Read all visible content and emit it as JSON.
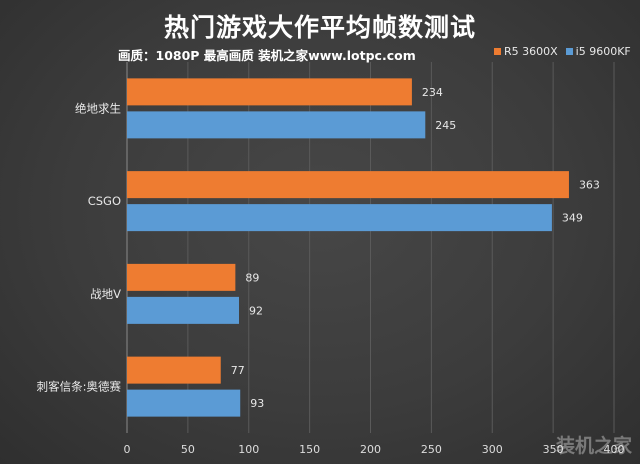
{
  "title": "热门游戏大作平均帧数测试",
  "subtitle": "画质：1080P 最高画质 装机之家www.lotpc.com",
  "watermark": "装机之家",
  "chart_data": {
    "type": "bar",
    "orientation": "horizontal",
    "categories": [
      "绝地求生",
      "CSGO",
      "战地V",
      "刺客信条:奥德赛"
    ],
    "series": [
      {
        "name": "R5 3600X",
        "color": "#ee7c31",
        "values": [
          234,
          363,
          89,
          77
        ]
      },
      {
        "name": "i5 9600KF",
        "color": "#5b9bd5",
        "values": [
          245,
          349,
          92,
          93
        ]
      }
    ],
    "xlim": [
      0,
      400
    ],
    "xticks": [
      0,
      50,
      100,
      150,
      200,
      250,
      300,
      350,
      400
    ],
    "grid": true,
    "legend_position": "top-right",
    "data_labels": true
  }
}
